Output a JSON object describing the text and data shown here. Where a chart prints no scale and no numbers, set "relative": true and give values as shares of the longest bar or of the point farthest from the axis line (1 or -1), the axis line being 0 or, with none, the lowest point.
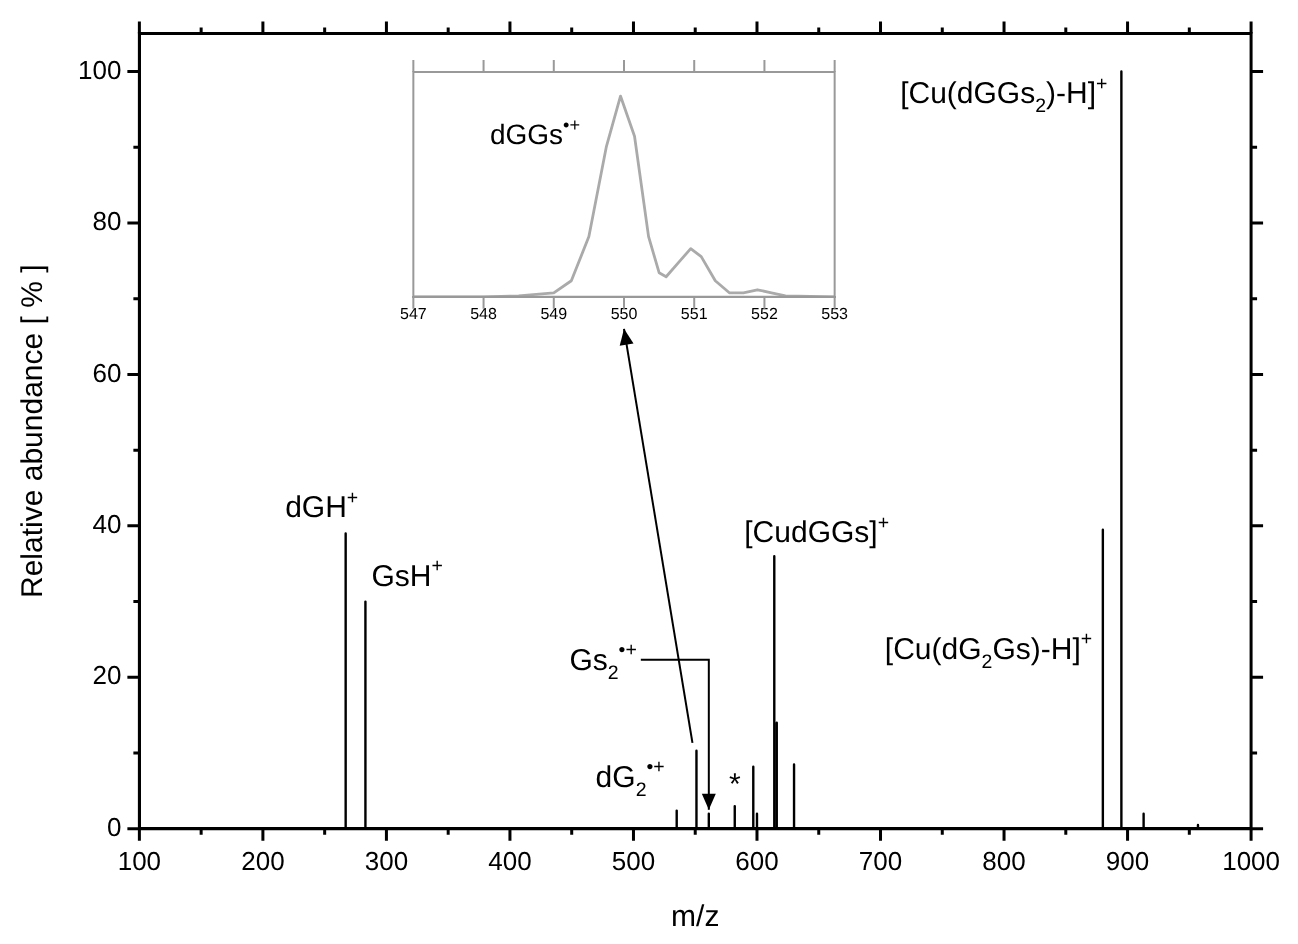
{
  "chart_data": [
    {
      "type": "line",
      "xlabel": "m/z",
      "ylabel": "Relative abundance [ % ]",
      "color": "#000000",
      "marker": "none",
      "grid": false,
      "legend": false,
      "x": [
        100,
        267,
        267,
        267,
        283,
        283,
        283,
        535,
        535,
        535,
        551,
        551,
        551,
        561,
        561,
        561,
        582,
        582,
        582,
        597,
        597,
        597,
        600,
        600,
        600,
        614,
        614,
        614,
        616,
        616,
        616,
        630,
        630,
        630,
        880,
        880,
        880,
        895,
        895,
        895,
        913,
        913,
        913,
        957,
        957,
        957,
        1000
      ],
      "values": [
        0,
        0,
        39,
        0,
        0,
        30,
        0,
        0,
        2.4,
        0,
        0,
        10.3,
        0,
        0,
        2,
        0,
        0,
        3,
        0,
        0,
        8.2,
        0,
        0,
        2,
        0,
        0,
        36,
        0,
        0,
        14,
        0,
        0,
        8.5,
        0,
        0,
        39.5,
        0,
        0,
        100,
        0,
        0,
        2,
        0,
        0,
        0.5,
        0,
        0
      ],
      "xlim": [
        100,
        1000
      ],
      "ylim": [
        0,
        105
      ],
      "xticks": [
        100,
        {
          "value": 150,
          "label": null
        },
        200,
        {
          "value": 250,
          "label": null
        },
        300,
        {
          "value": 350,
          "label": null
        },
        400,
        {
          "value": 450,
          "label": null
        },
        500,
        {
          "value": 550,
          "label": null
        },
        600,
        {
          "value": 650,
          "label": null
        },
        700,
        {
          "value": 750,
          "label": null
        },
        800,
        {
          "value": 850,
          "label": null
        },
        900,
        {
          "value": 950,
          "label": null
        },
        1000
      ],
      "yticks": [
        0,
        {
          "value": 10,
          "label": null
        },
        20,
        {
          "value": 30,
          "label": null
        },
        40,
        {
          "value": 50,
          "label": null
        },
        60,
        {
          "value": 70,
          "label": null
        },
        80,
        {
          "value": 90,
          "label": null
        },
        100
      ],
      "annotations": [
        {
          "text": "dGH$^{+}$",
          "x": 267,
          "y": 39
        },
        {
          "text": "GsH$^{+}$",
          "x": 283,
          "y": 30
        },
        {
          "text": "[CudGGs]$^{+}$",
          "x": 614,
          "y": 36
        },
        {
          "text": "[Cu(dGGs$_{2}$)-H]$^{+}$",
          "x": 895,
          "y": 100
        },
        "[Cu(dG$_{2}$Gs)-H]$^{+}$",
        {
          "text": "Gs$_{2}$$^{•+}$",
          "x": 561,
          "y": 2
        },
        {
          "text": "dG$_{2}$$^{•+}$",
          "x": 535,
          "y": 2.4
        },
        {
          "text": "*",
          "x": 582,
          "y": 3
        }
      ]
    },
    {
      "type": "line",
      "color": "#aaaaaa",
      "marker": "none",
      "grid": false,
      "legend": false,
      "relative": true,
      "tick_labels": "x",
      "x": [
        547,
        548,
        548.5,
        549,
        549.25,
        549.5,
        549.75,
        549.95,
        550.15,
        550.35,
        550.5,
        550.6,
        550.8,
        550.95,
        551.1,
        551.3,
        551.5,
        551.7,
        551.9,
        552.1,
        552.3,
        553
      ],
      "values": [
        0,
        0,
        0.005,
        0.02,
        0.08,
        0.3,
        0.75,
        1,
        0.8,
        0.3,
        0.12,
        0.1,
        0.18,
        0.24,
        0.2,
        0.08,
        0.02,
        0.02,
        0.035,
        0.02,
        0.005,
        0
      ],
      "xlim": [
        547,
        553
      ],
      "xticks": [
        547,
        548,
        549,
        550,
        551,
        552,
        553
      ],
      "annotations": [
        {
          "text": "dGGs$^{•+}$",
          "x": 550,
          "y": 1
        }
      ]
    }
  ]
}
